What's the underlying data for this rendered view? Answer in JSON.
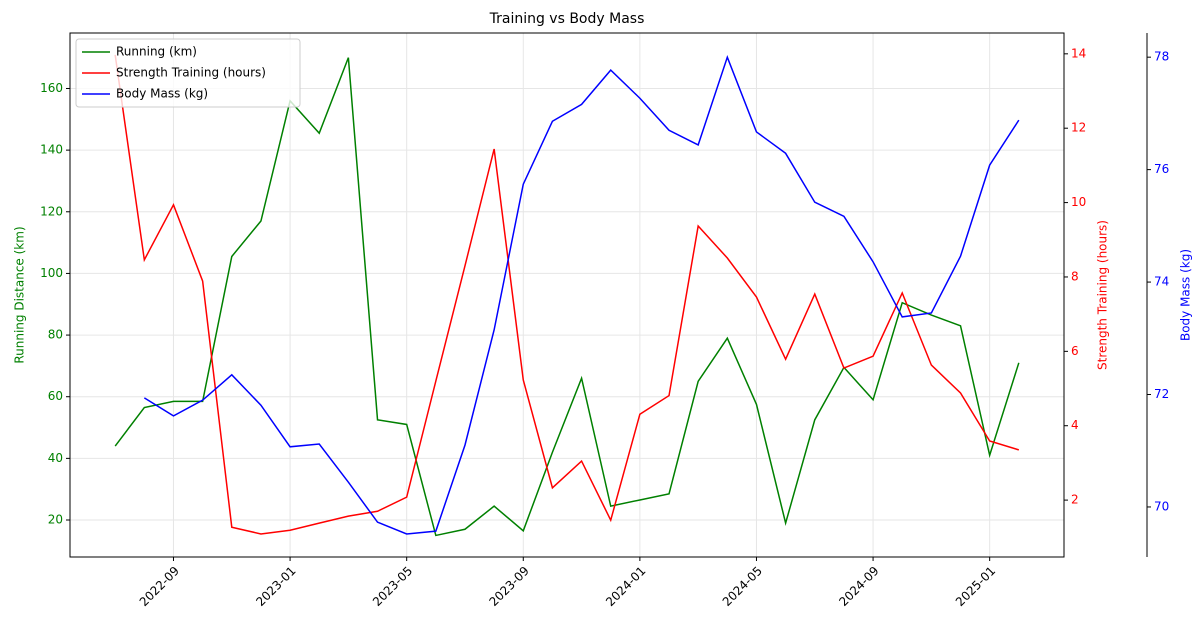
{
  "chart_data": {
    "type": "line",
    "title": "Training vs Body Mass",
    "x": [
      "2022-07",
      "2022-08",
      "2022-09",
      "2022-10",
      "2022-11",
      "2022-12",
      "2023-01",
      "2023-02",
      "2023-03",
      "2023-04",
      "2023-05",
      "2023-06",
      "2023-07",
      "2023-08",
      "2023-09",
      "2023-10",
      "2023-11",
      "2023-12",
      "2024-01",
      "2024-02",
      "2024-03",
      "2024-04",
      "2024-05",
      "2024-06",
      "2024-07",
      "2024-08",
      "2024-09",
      "2024-10",
      "2024-11",
      "2024-12",
      "2025-01",
      "2025-02"
    ],
    "xticks": [
      "2022-09",
      "2023-01",
      "2023-05",
      "2023-09",
      "2024-01",
      "2024-05",
      "2024-09",
      "2025-01"
    ],
    "ylabel": "Running Distance (km)",
    "y2label": "Strength Training (hours)",
    "y3label": "Body Mass (kg)",
    "ylim": [
      8,
      178
    ],
    "yticks": [
      20,
      40,
      60,
      80,
      100,
      120,
      140,
      160
    ],
    "y2lim": [
      0.47,
      14.56
    ],
    "y2ticks": [
      2,
      4,
      6,
      8,
      10,
      12,
      14
    ],
    "y3lim": [
      69.11,
      78.43
    ],
    "y3ticks": [
      70,
      72,
      74,
      76,
      78
    ],
    "grid": true,
    "legend": "upper left",
    "series": [
      {
        "name": "Running (km)",
        "color": "#008000",
        "axis": "y",
        "values": [
          44,
          56.5,
          58.5,
          58.5,
          105.5,
          117,
          156,
          145.5,
          170,
          52.5,
          51,
          15,
          17,
          24.5,
          16.5,
          42,
          66,
          24.5,
          26.5,
          28.5,
          65,
          79,
          57.5,
          19,
          52.5,
          69.5,
          59,
          90.5,
          86.5,
          83,
          41,
          71
        ]
      },
      {
        "name": "Strength Training (hours)",
        "color": "#ff0000",
        "axis": "y2",
        "values": [
          13.97,
          8.46,
          9.94,
          7.89,
          1.27,
          1.09,
          1.19,
          1.38,
          1.57,
          1.7,
          2.08,
          5.2,
          8.3,
          11.44,
          5.23,
          2.33,
          3.05,
          1.46,
          4.31,
          4.81,
          9.37,
          8.51,
          7.46,
          5.79,
          7.54,
          5.55,
          5.87,
          7.57,
          5.63,
          4.88,
          3.59,
          3.35
        ]
      },
      {
        "name": "Body Mass (kg)",
        "color": "#0000ff",
        "axis": "y3",
        "values": [
          null,
          71.94,
          71.62,
          71.9,
          72.35,
          71.81,
          71.07,
          71.12,
          70.44,
          69.73,
          69.52,
          69.57,
          71.1,
          73.15,
          75.74,
          76.86,
          77.16,
          77.77,
          77.27,
          76.7,
          76.44,
          78.0,
          76.67,
          76.29,
          75.42,
          75.17,
          74.36,
          73.38,
          73.45,
          74.46,
          76.08,
          76.88
        ]
      }
    ]
  }
}
